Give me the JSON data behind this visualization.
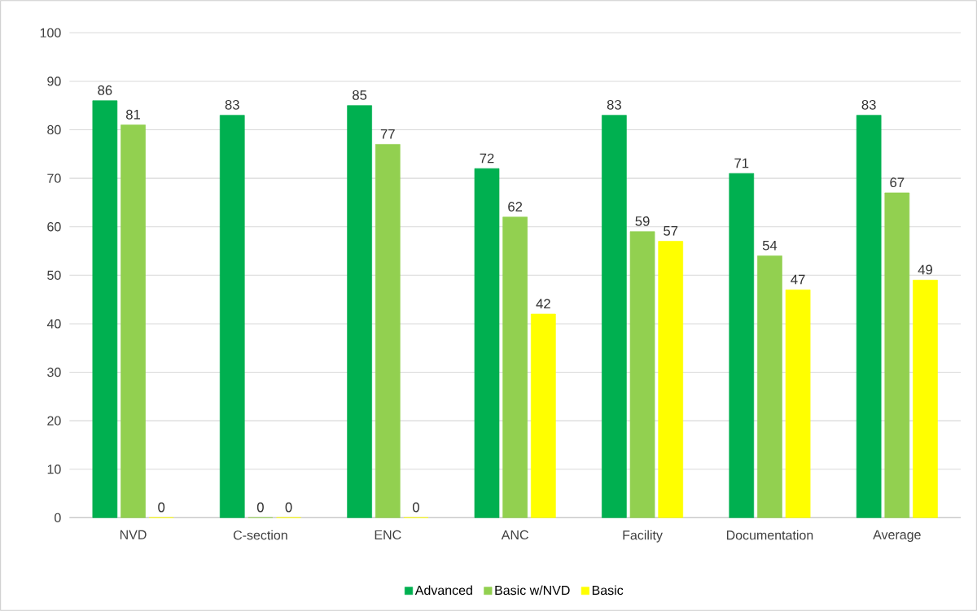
{
  "chart_data": {
    "type": "bar",
    "categories": [
      "NVD",
      "C-section",
      "ENC",
      "ANC",
      "Facility",
      "Documentation",
      "Average"
    ],
    "series": [
      {
        "name": "Advanced",
        "color": "#00b050",
        "values": [
          86,
          83,
          85,
          72,
          83,
          71,
          83
        ]
      },
      {
        "name": "Basic w/NVD",
        "color": "#92d050",
        "values": [
          81,
          0,
          77,
          62,
          59,
          54,
          67
        ]
      },
      {
        "name": "Basic",
        "color": "#ffff00",
        "values": [
          0,
          0,
          0,
          42,
          57,
          47,
          49
        ]
      }
    ],
    "ylim": [
      0,
      100
    ],
    "yticks": [
      0,
      10,
      20,
      30,
      40,
      50,
      60,
      70,
      80,
      90,
      100
    ],
    "grid": "y",
    "legend": "bottom",
    "data_labels": true
  }
}
